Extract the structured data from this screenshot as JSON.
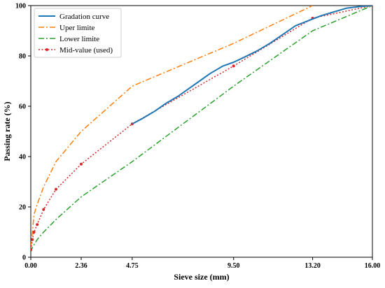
{
  "chart_data": {
    "type": "line",
    "xlabel": "Sieve size (mm)",
    "ylabel": "Passing rate (%)",
    "xlim": [
      0,
      16
    ],
    "ylim": [
      0,
      100
    ],
    "x_ticks": [
      0,
      2.36,
      4.75,
      9.5,
      13.2,
      16
    ],
    "x_tick_labels": [
      "0.00",
      "2.36",
      "4.75",
      "9.50",
      "13.20",
      "16.00"
    ],
    "y_ticks": [
      0,
      20,
      40,
      60,
      80,
      100
    ],
    "y_tick_labels": [
      "0",
      "20",
      "40",
      "60",
      "80",
      "100"
    ],
    "legend_position": "top-left",
    "series": [
      {
        "name": "Gradation curve",
        "color": "#1f77b4",
        "style": "solid",
        "x": [
          4.75,
          5.2,
          5.8,
          6.3,
          6.9,
          7.4,
          7.9,
          8.4,
          9.0,
          9.5,
          10.0,
          10.6,
          11.2,
          11.8,
          12.4,
          13.0,
          13.6,
          14.2,
          14.8,
          15.4,
          16.0
        ],
        "y": [
          53,
          55,
          58,
          61,
          64,
          67,
          70,
          73,
          76,
          77.5,
          79.5,
          82,
          85,
          88.5,
          92,
          94,
          96,
          97.5,
          99,
          99.6,
          100
        ]
      },
      {
        "name": "Uper limite",
        "color": "#ff7f0e",
        "style": "dashdot",
        "x": [
          0,
          0.075,
          0.15,
          0.3,
          0.6,
          1.18,
          2.36,
          4.75,
          9.5,
          13.2
        ],
        "y": [
          4,
          10,
          17,
          21,
          28,
          38,
          50,
          68,
          85,
          100
        ]
      },
      {
        "name": "Lower limite",
        "color": "#2ca02c",
        "style": "dashdot",
        "x": [
          0,
          0.075,
          0.15,
          0.3,
          0.6,
          1.18,
          2.36,
          4.75,
          9.5,
          13.2,
          16.0
        ],
        "y": [
          2,
          4,
          5,
          7,
          10,
          15,
          24,
          38,
          68,
          90,
          100
        ]
      },
      {
        "name": "Mid-value (used)",
        "color": "#d62728",
        "style": "dotted",
        "marker": "circle",
        "x": [
          0,
          0.075,
          0.15,
          0.3,
          0.6,
          1.18,
          2.36,
          4.75,
          9.5,
          13.2,
          16.0
        ],
        "y": [
          3,
          7,
          10,
          13,
          19,
          27,
          37,
          53,
          76,
          95,
          100
        ]
      }
    ]
  }
}
